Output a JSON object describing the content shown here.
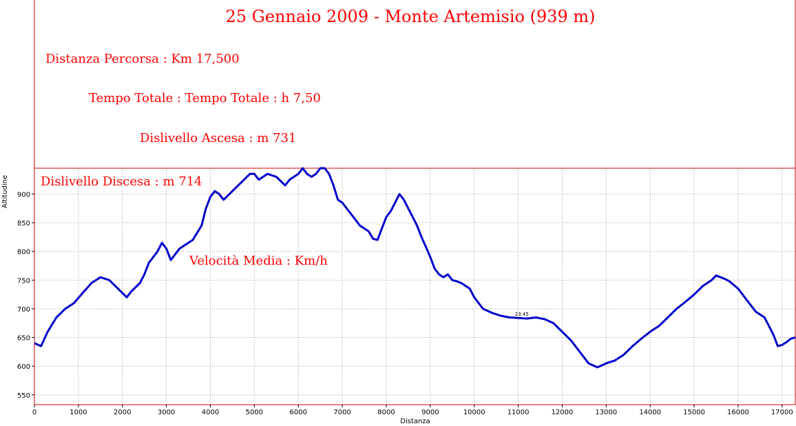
{
  "chart_data": {
    "type": "line",
    "title": "25 Gennaio 2009 - Monte Artemisio (939 m)",
    "xlabel": "Distanza",
    "ylabel": "Altitudine",
    "xlim": [
      0,
      17300
    ],
    "ylim": [
      533,
      945
    ],
    "x_ticks": [
      0,
      1000,
      2000,
      3000,
      4000,
      5000,
      6000,
      7000,
      8000,
      9000,
      10000,
      11000,
      12000,
      13000,
      14000,
      15000,
      16000,
      17000
    ],
    "y_ticks": [
      550,
      600,
      650,
      700,
      750,
      800,
      850,
      900
    ],
    "grid": true,
    "series": [
      {
        "color": "#0000cc",
        "x": [
          0,
          150,
          300,
          500,
          700,
          900,
          1100,
          1300,
          1500,
          1700,
          1900,
          2100,
          2200,
          2400,
          2500,
          2600,
          2700,
          2800,
          2900,
          3000,
          3100,
          3200,
          3300,
          3400,
          3600,
          3800,
          3900,
          4000,
          4100,
          4200,
          4300,
          4500,
          4700,
          4900,
          5000,
          5100,
          5300,
          5500,
          5700,
          5800,
          5900,
          6000,
          6100,
          6200,
          6300,
          6400,
          6500,
          6600,
          6700,
          6800,
          6900,
          7000,
          7200,
          7400,
          7600,
          7700,
          7800,
          7900,
          8000,
          8100,
          8200,
          8300,
          8400,
          8500,
          8600,
          8700,
          8800,
          8900,
          9000,
          9100,
          9200,
          9300,
          9400,
          9500,
          9600,
          9700,
          9900,
          10000,
          10200,
          10400,
          10600,
          10800,
          11000,
          11200,
          11400,
          11600,
          11800,
          12000,
          12200,
          12400,
          12600,
          12800,
          13000,
          13200,
          13400,
          13600,
          13800,
          14000,
          14200,
          14400,
          14600,
          14800,
          15000,
          15200,
          15400,
          15500,
          15600,
          15700,
          15800,
          16000,
          16200,
          16400,
          16600,
          16800,
          16900,
          17000,
          17100,
          17200,
          17300
        ],
        "values": [
          640,
          635,
          660,
          685,
          700,
          710,
          728,
          745,
          755,
          750,
          735,
          720,
          730,
          745,
          760,
          780,
          790,
          800,
          815,
          805,
          785,
          795,
          805,
          810,
          820,
          845,
          875,
          895,
          905,
          900,
          890,
          905,
          920,
          935,
          935,
          925,
          935,
          930,
          915,
          925,
          930,
          935,
          945,
          935,
          930,
          935,
          945,
          945,
          935,
          915,
          890,
          885,
          865,
          845,
          835,
          822,
          820,
          840,
          860,
          870,
          885,
          900,
          890,
          875,
          860,
          845,
          825,
          808,
          790,
          770,
          760,
          755,
          760,
          750,
          748,
          745,
          735,
          720,
          700,
          693,
          688,
          685,
          684,
          683,
          685,
          682,
          675,
          660,
          645,
          625,
          605,
          598,
          605,
          610,
          620,
          635,
          648,
          660,
          670,
          685,
          700,
          712,
          725,
          740,
          750,
          758,
          755,
          752,
          748,
          735,
          715,
          695,
          685,
          655,
          635,
          637,
          642,
          648,
          650
        ]
      }
    ],
    "annotations": [
      {
        "text": "Distanza Percorsa :  Km 17,500"
      },
      {
        "text": "Tempo Totale :  Tempo Totale :  h 7,50"
      },
      {
        "text": "Dislivello Ascesa :  m 731"
      },
      {
        "text": "Dislivello Discesa :  m 714"
      },
      {
        "text": "Velocità Media : Km/h"
      }
    ],
    "marker": {
      "x": 11050,
      "y": 683,
      "label": "23.45"
    }
  },
  "colors": {
    "line": "#0000cc",
    "frame": "#cc0000",
    "grid": "#a0a0a0",
    "text": "#ff0000"
  }
}
